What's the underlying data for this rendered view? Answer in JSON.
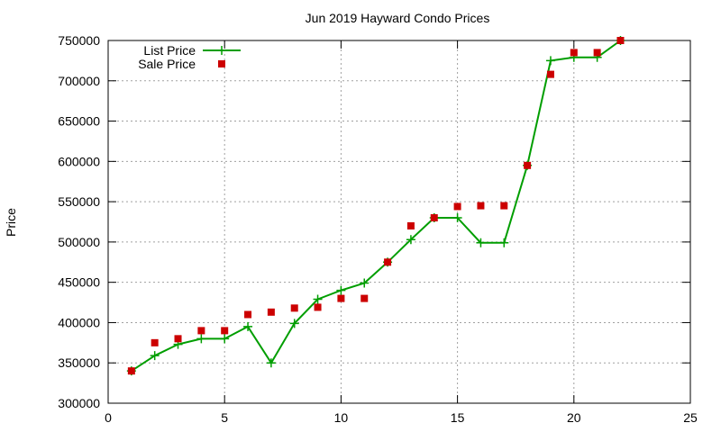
{
  "chart_data": {
    "type": "line",
    "title": "Jun 2019 Hayward Condo Prices",
    "xlabel": "",
    "ylabel": "Price",
    "xlim": [
      0,
      25
    ],
    "ylim": [
      300000,
      750000
    ],
    "x_ticks": [
      0,
      5,
      10,
      15,
      20,
      25
    ],
    "y_ticks": [
      300000,
      350000,
      400000,
      450000,
      500000,
      550000,
      600000,
      650000,
      700000,
      750000
    ],
    "grid": true,
    "legend_position": "top-left",
    "series": [
      {
        "name": "List Price",
        "style": "line-with-plus-markers",
        "color": "#009e00",
        "points": [
          [
            1,
            340000
          ],
          [
            2,
            359000
          ],
          [
            3,
            373000
          ],
          [
            4,
            380000
          ],
          [
            5,
            380000
          ],
          [
            6,
            395000
          ],
          [
            7,
            350000
          ],
          [
            8,
            399000
          ],
          [
            9,
            429000
          ],
          [
            10,
            440000
          ],
          [
            11,
            449000
          ],
          [
            12,
            475000
          ],
          [
            13,
            503000
          ],
          [
            14,
            530000
          ],
          [
            15,
            530000
          ],
          [
            16,
            499000
          ],
          [
            17,
            499000
          ],
          [
            18,
            595000
          ],
          [
            19,
            725000
          ],
          [
            20,
            729000
          ],
          [
            21,
            729000
          ],
          [
            22,
            750000
          ]
        ]
      },
      {
        "name": "Sale Price",
        "style": "square-markers",
        "color": "#cc0000",
        "points": [
          [
            1,
            340000
          ],
          [
            2,
            375000
          ],
          [
            3,
            380000
          ],
          [
            4,
            390000
          ],
          [
            5,
            390000
          ],
          [
            6,
            410000
          ],
          [
            7,
            413000
          ],
          [
            8,
            418000
          ],
          [
            9,
            419000
          ],
          [
            10,
            430000
          ],
          [
            11,
            430000
          ],
          [
            12,
            475000
          ],
          [
            13,
            520000
          ],
          [
            14,
            530000
          ],
          [
            15,
            544000
          ],
          [
            16,
            545000
          ],
          [
            17,
            545000
          ],
          [
            18,
            595000
          ],
          [
            19,
            708000
          ],
          [
            20,
            735000
          ],
          [
            21,
            735000
          ],
          [
            22,
            750000
          ]
        ]
      }
    ]
  }
}
